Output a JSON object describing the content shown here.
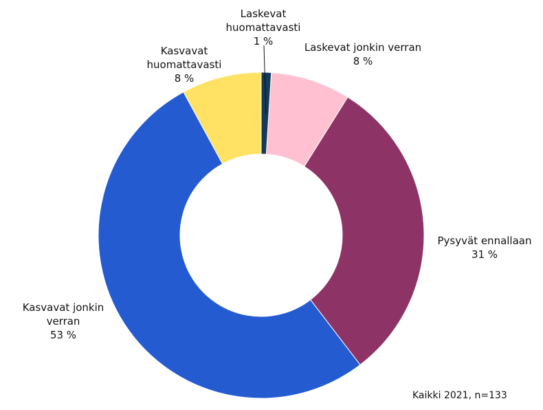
{
  "chart_data": {
    "type": "donut",
    "categories": [
      "Laskevat huomattavasti",
      "Laskevat jonkin verran",
      "Pysyvät ennallaan",
      "Kasvavat jonkin verran",
      "Kasvavat huomattavasti"
    ],
    "values": [
      1,
      8,
      31,
      53,
      8
    ],
    "value_labels": [
      "1 %",
      "8 %",
      "31 %",
      "53 %",
      "8 %"
    ],
    "colors": [
      "#153a5a",
      "#ffc1d2",
      "#8e3366",
      "#245bd1",
      "#ffe264"
    ],
    "note": "Kaikki 2021, n=133"
  }
}
